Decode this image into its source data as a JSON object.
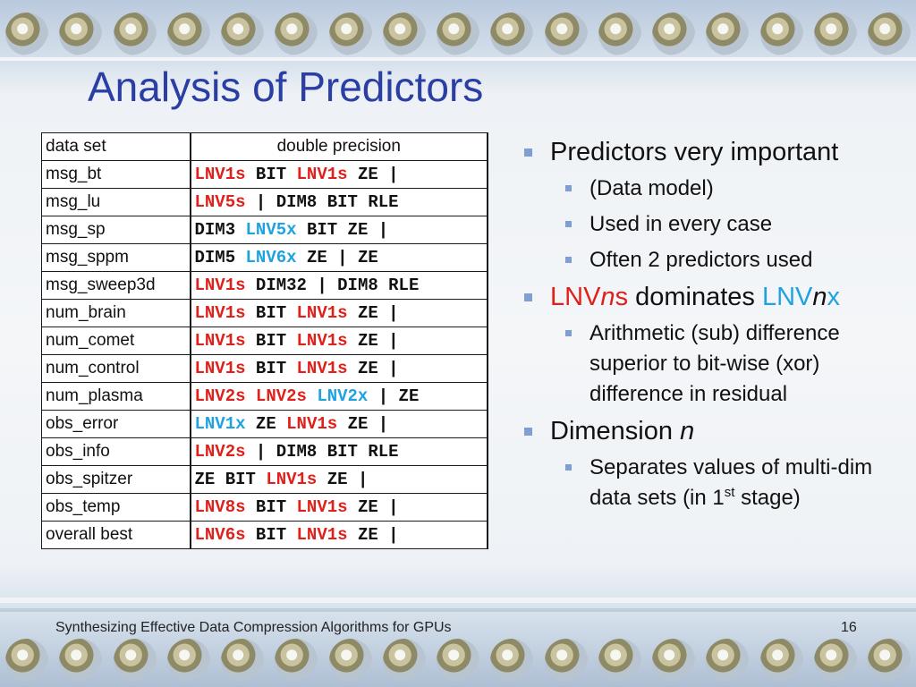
{
  "slide": {
    "title": "Analysis of Predictors",
    "footer": "Synthesizing Effective Data Compression Algorithms for GPUs",
    "page_number": "16"
  },
  "table": {
    "headers": [
      "data set",
      "double precision"
    ],
    "rows": [
      {
        "dataset": "msg_bt",
        "tokens": [
          {
            "t": "LNV1s ",
            "c": "red"
          },
          {
            "t": "BIT ",
            "c": "dark"
          },
          {
            "t": "LNV1s ",
            "c": "red"
          },
          {
            "t": "ZE |",
            "c": "dark"
          }
        ]
      },
      {
        "dataset": "msg_lu",
        "tokens": [
          {
            "t": "LNV5s ",
            "c": "red"
          },
          {
            "t": "| DIM8 BIT RLE",
            "c": "dark"
          }
        ]
      },
      {
        "dataset": "msg_sp",
        "tokens": [
          {
            "t": "DIM3 ",
            "c": "dark"
          },
          {
            "t": "LNV5x ",
            "c": "blue"
          },
          {
            "t": "BIT ZE |",
            "c": "dark"
          }
        ]
      },
      {
        "dataset": "msg_sppm",
        "tokens": [
          {
            "t": "DIM5 ",
            "c": "dark"
          },
          {
            "t": "LNV6x ",
            "c": "blue"
          },
          {
            "t": "ZE | ZE",
            "c": "dark"
          }
        ]
      },
      {
        "dataset": "msg_sweep3d",
        "tokens": [
          {
            "t": "LNV1s ",
            "c": "red"
          },
          {
            "t": "DIM32 | DIM8 RLE",
            "c": "dark"
          }
        ]
      },
      {
        "dataset": "num_brain",
        "tokens": [
          {
            "t": "LNV1s ",
            "c": "red"
          },
          {
            "t": "BIT ",
            "c": "dark"
          },
          {
            "t": "LNV1s ",
            "c": "red"
          },
          {
            "t": "ZE |",
            "c": "dark"
          }
        ]
      },
      {
        "dataset": "num_comet",
        "tokens": [
          {
            "t": "LNV1s ",
            "c": "red"
          },
          {
            "t": "BIT ",
            "c": "dark"
          },
          {
            "t": "LNV1s ",
            "c": "red"
          },
          {
            "t": "ZE |",
            "c": "dark"
          }
        ]
      },
      {
        "dataset": "num_control",
        "tokens": [
          {
            "t": "LNV1s ",
            "c": "red"
          },
          {
            "t": "BIT ",
            "c": "dark"
          },
          {
            "t": "LNV1s ",
            "c": "red"
          },
          {
            "t": "ZE |",
            "c": "dark"
          }
        ]
      },
      {
        "dataset": "num_plasma",
        "tokens": [
          {
            "t": "LNV2s LNV2s ",
            "c": "red"
          },
          {
            "t": "LNV2x ",
            "c": "blue"
          },
          {
            "t": "| ZE",
            "c": "dark"
          }
        ]
      },
      {
        "dataset": "obs_error",
        "tokens": [
          {
            "t": "LNV1x ",
            "c": "blue"
          },
          {
            "t": "ZE ",
            "c": "dark"
          },
          {
            "t": "LNV1s ",
            "c": "red"
          },
          {
            "t": "ZE |",
            "c": "dark"
          }
        ]
      },
      {
        "dataset": "obs_info",
        "tokens": [
          {
            "t": "LNV2s ",
            "c": "red"
          },
          {
            "t": "| DIM8 BIT RLE",
            "c": "dark"
          }
        ]
      },
      {
        "dataset": "obs_spitzer",
        "tokens": [
          {
            "t": "ZE BIT ",
            "c": "dark"
          },
          {
            "t": "LNV1s ",
            "c": "red"
          },
          {
            "t": "ZE |",
            "c": "dark"
          }
        ]
      },
      {
        "dataset": "obs_temp",
        "tokens": [
          {
            "t": "LNV8s ",
            "c": "red"
          },
          {
            "t": "BIT ",
            "c": "dark"
          },
          {
            "t": "LNV1s ",
            "c": "red"
          },
          {
            "t": "ZE |",
            "c": "dark"
          }
        ]
      },
      {
        "dataset": "overall best",
        "tokens": [
          {
            "t": "LNV6s ",
            "c": "red"
          },
          {
            "t": "BIT ",
            "c": "dark"
          },
          {
            "t": "LNV1s ",
            "c": "red"
          },
          {
            "t": "ZE |",
            "c": "dark"
          }
        ]
      }
    ]
  },
  "bullets": {
    "b1": "Predictors very important",
    "b1_sub": [
      "(Data model)",
      "Used in every case",
      "Often 2 predictors used"
    ],
    "b2": {
      "lnv_prefix": "LNV",
      "n1": "n",
      "s": "s",
      "mid": " dominates ",
      "n2": "n",
      "x": "x"
    },
    "b2_sub": "Arithmetic (sub) difference superior to bit-wise (xor) difference in residual",
    "b3": {
      "text": "Dimension ",
      "var": "n"
    },
    "b3_sub": {
      "pre": "Separates values of multi-dim data sets (in 1",
      "sup": "st",
      "post": " stage)"
    }
  },
  "colors": {
    "title": "#2b3ea3",
    "red": "#e0201b",
    "blue": "#1fa3e0",
    "bullet": "#7f9fd3"
  }
}
